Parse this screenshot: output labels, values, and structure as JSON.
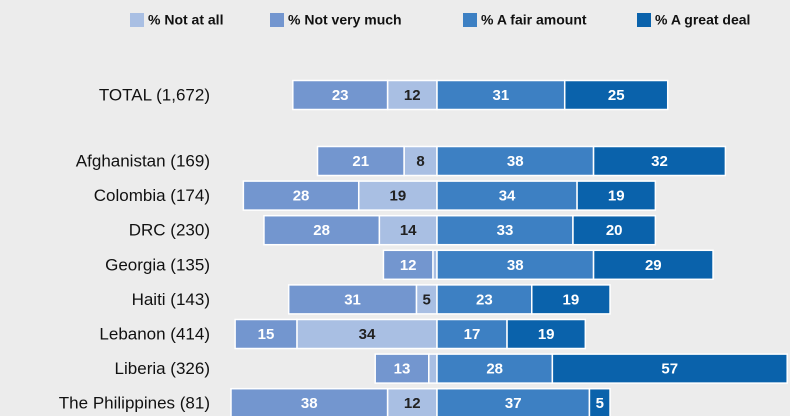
{
  "chart_data": {
    "type": "diverging-bar",
    "categories": [
      "TOTAL (1,672)",
      "Afghanistan (169)",
      "Colombia (174)",
      "DRC (230)",
      "Georgia (135)",
      "Haiti (143)",
      "Lebanon (414)",
      "Liberia (326)",
      "The Philippines (81)"
    ],
    "series": [
      {
        "name": "% Not at all",
        "color": "#a9bfe3",
        "side": "left",
        "values": [
          12,
          8,
          19,
          14,
          1,
          5,
          34,
          2,
          12
        ]
      },
      {
        "name": "% Not very much",
        "color": "#7396cf",
        "side": "left",
        "values": [
          23,
          21,
          28,
          28,
          12,
          31,
          15,
          13,
          38
        ]
      },
      {
        "name": "% A fair amount",
        "color": "#3d80c3",
        "side": "right",
        "values": [
          31,
          38,
          34,
          33,
          38,
          23,
          17,
          28,
          37
        ]
      },
      {
        "name": "% A great deal",
        "color": "#0a62ab",
        "side": "right",
        "values": [
          25,
          32,
          19,
          20,
          29,
          19,
          19,
          57,
          5
        ]
      }
    ]
  }
}
